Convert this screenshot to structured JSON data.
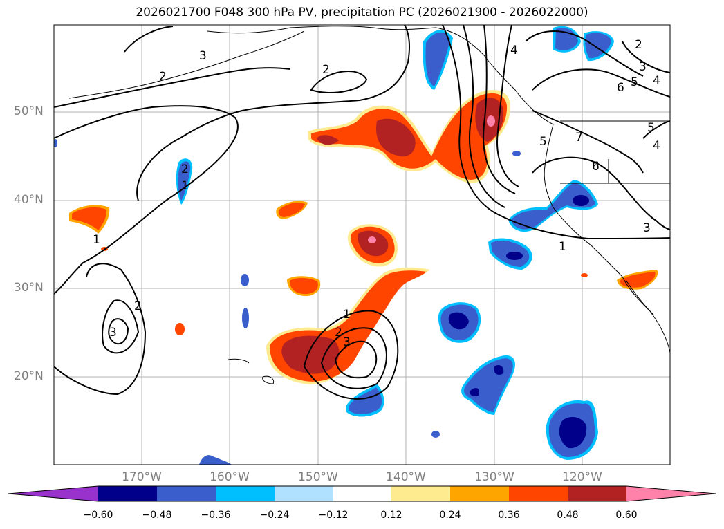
{
  "title": "2026021700 F048 300 hPa PV, precipitation PC (2026021900 - 2026022000)",
  "lat_labels": [
    "50°N",
    "40°N",
    "30°N",
    "20°N"
  ],
  "lon_labels": [
    "170°W",
    "160°W",
    "150°W",
    "140°W",
    "130°W",
    "120°W"
  ],
  "contour_labels": [
    "3",
    "2",
    "2",
    "2",
    "1",
    "1",
    "2",
    "3",
    "1",
    "2",
    "3",
    "4",
    "5",
    "6",
    "7",
    "5",
    "6",
    "1",
    "3",
    "4",
    "3",
    "2",
    "5",
    "4"
  ],
  "colorbar": {
    "colors": [
      "#9932cc",
      "#00008b",
      "#3a5fcd",
      "#00bfff",
      "#b0e2ff",
      "#ffffff",
      "#ffeb8f",
      "#ffa500",
      "#ff4500",
      "#b22222",
      "#ff82ab"
    ],
    "ticks": [
      "−0.60",
      "−0.48",
      "−0.36",
      "−0.24",
      "−0.12",
      "0.12",
      "0.24",
      "0.36",
      "0.48",
      "0.60"
    ]
  }
}
